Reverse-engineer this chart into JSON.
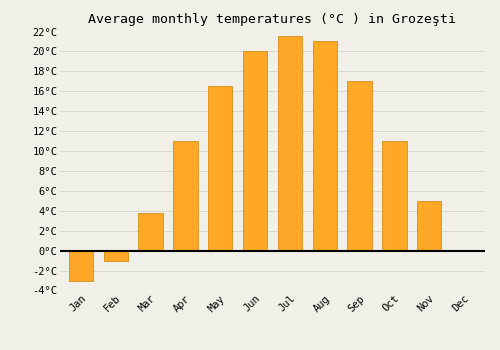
{
  "title": "Average monthly temperatures (°C ) in Grozeşti",
  "months": [
    "Jan",
    "Feb",
    "Mar",
    "Apr",
    "May",
    "Jun",
    "Jul",
    "Aug",
    "Sep",
    "Oct",
    "Nov",
    "Dec"
  ],
  "values": [
    -3.0,
    -1.0,
    3.8,
    11.0,
    16.5,
    20.0,
    21.5,
    21.0,
    17.0,
    11.0,
    5.0,
    0.0
  ],
  "bar_color": "#FFA726",
  "bar_edge_color": "#CC8400",
  "background_color": "#f0f0e8",
  "ylim": [
    -4,
    22
  ],
  "yticks": [
    -4,
    -2,
    0,
    2,
    4,
    6,
    8,
    10,
    12,
    14,
    16,
    18,
    20,
    22
  ],
  "grid_color": "#d8d8d0",
  "title_fontsize": 9.5,
  "tick_fontsize": 7.5,
  "bar_width": 0.7
}
